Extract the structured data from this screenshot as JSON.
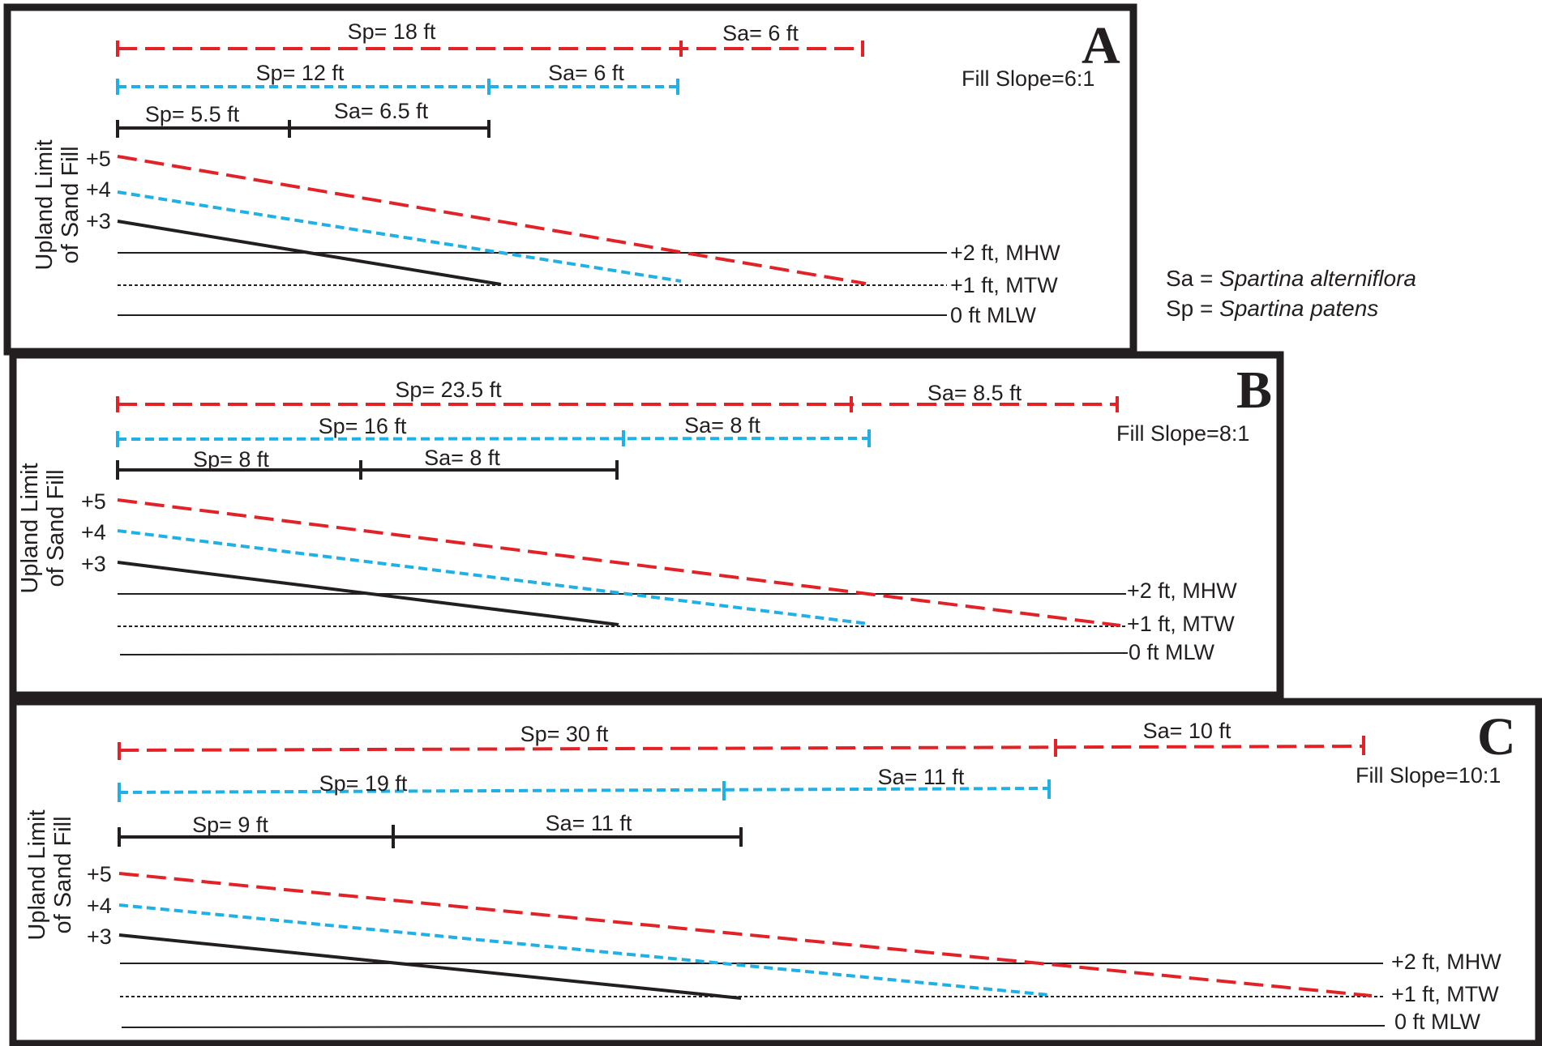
{
  "colors": {
    "red": "#e32228",
    "blue": "#1fb1e6",
    "black": "#231f20",
    "frame": "#231f20"
  },
  "legend": {
    "sa_abbr": "Sa = ",
    "sa_name": "Spartina alterniflora",
    "sp_abbr": "Sp = ",
    "sp_name": "Spartina patens"
  },
  "panels": [
    {
      "letter": "A",
      "fill_slope": "Fill Slope=6:1",
      "y_label_line1": "Upland Limit",
      "y_label_line2": "of Sand Fill",
      "elevation_ticks": [
        "+5",
        "+4",
        "+3"
      ],
      "water_levels": [
        {
          "label": "+2 ft, MHW",
          "style": "solid"
        },
        {
          "label": "+1 ft, MTW",
          "style": "dotted"
        },
        {
          "label": "0 ft MLW",
          "style": "solid"
        }
      ],
      "widths": [
        {
          "series": "red",
          "start_elev": 5,
          "sp": 18,
          "sa": 6,
          "sp_label": "Sp= 18 ft",
          "sa_label": "Sa= 6 ft"
        },
        {
          "series": "blue",
          "start_elev": 4,
          "sp": 12,
          "sa": 6,
          "sp_label": "Sp= 12 ft",
          "sa_label": "Sa= 6 ft"
        },
        {
          "series": "black",
          "start_elev": 3,
          "sp": 5.5,
          "sa": 6.5,
          "sp_label": "Sp= 5.5 ft",
          "sa_label": "Sa= 6.5 ft"
        }
      ]
    },
    {
      "letter": "B",
      "fill_slope": "Fill Slope=8:1",
      "y_label_line1": "Upland Limit",
      "y_label_line2": "of Sand Fill",
      "elevation_ticks": [
        "+5",
        "+4",
        "+3"
      ],
      "water_levels": [
        {
          "label": "+2 ft, MHW",
          "style": "solid"
        },
        {
          "label": "+1 ft, MTW",
          "style": "dotted"
        },
        {
          "label": "0 ft MLW",
          "style": "solid"
        }
      ],
      "widths": [
        {
          "series": "red",
          "start_elev": 5,
          "sp": 23.5,
          "sa": 8.5,
          "sp_label": "Sp= 23.5 ft",
          "sa_label": "Sa= 8.5 ft"
        },
        {
          "series": "blue",
          "start_elev": 4,
          "sp": 16,
          "sa": 8,
          "sp_label": "Sp= 16 ft",
          "sa_label": "Sa= 8 ft"
        },
        {
          "series": "black",
          "start_elev": 3,
          "sp": 8,
          "sa": 8,
          "sp_label": "Sp= 8 ft",
          "sa_label": "Sa= 8 ft"
        }
      ]
    },
    {
      "letter": "C",
      "fill_slope": "Fill Slope=10:1",
      "y_label_line1": "Upland Limit",
      "y_label_line2": "of Sand Fill",
      "elevation_ticks": [
        "+5",
        "+4",
        "+3"
      ],
      "water_levels": [
        {
          "label": "+2 ft, MHW",
          "style": "solid"
        },
        {
          "label": "+1 ft, MTW",
          "style": "dotted"
        },
        {
          "label": "0 ft MLW",
          "style": "solid"
        }
      ],
      "widths": [
        {
          "series": "red",
          "start_elev": 5,
          "sp": 30,
          "sa": 10,
          "sp_label": "Sp= 30 ft",
          "sa_label": "Sa= 10 ft"
        },
        {
          "series": "blue",
          "start_elev": 4,
          "sp": 19,
          "sa": 11,
          "sp_label": "Sp= 19 ft",
          "sa_label": "Sa= 11 ft"
        },
        {
          "series": "black",
          "start_elev": 3,
          "sp": 9,
          "sa": 11,
          "sp_label": "Sp= 9 ft",
          "sa_label": "Sa= 11 ft"
        }
      ]
    }
  ]
}
